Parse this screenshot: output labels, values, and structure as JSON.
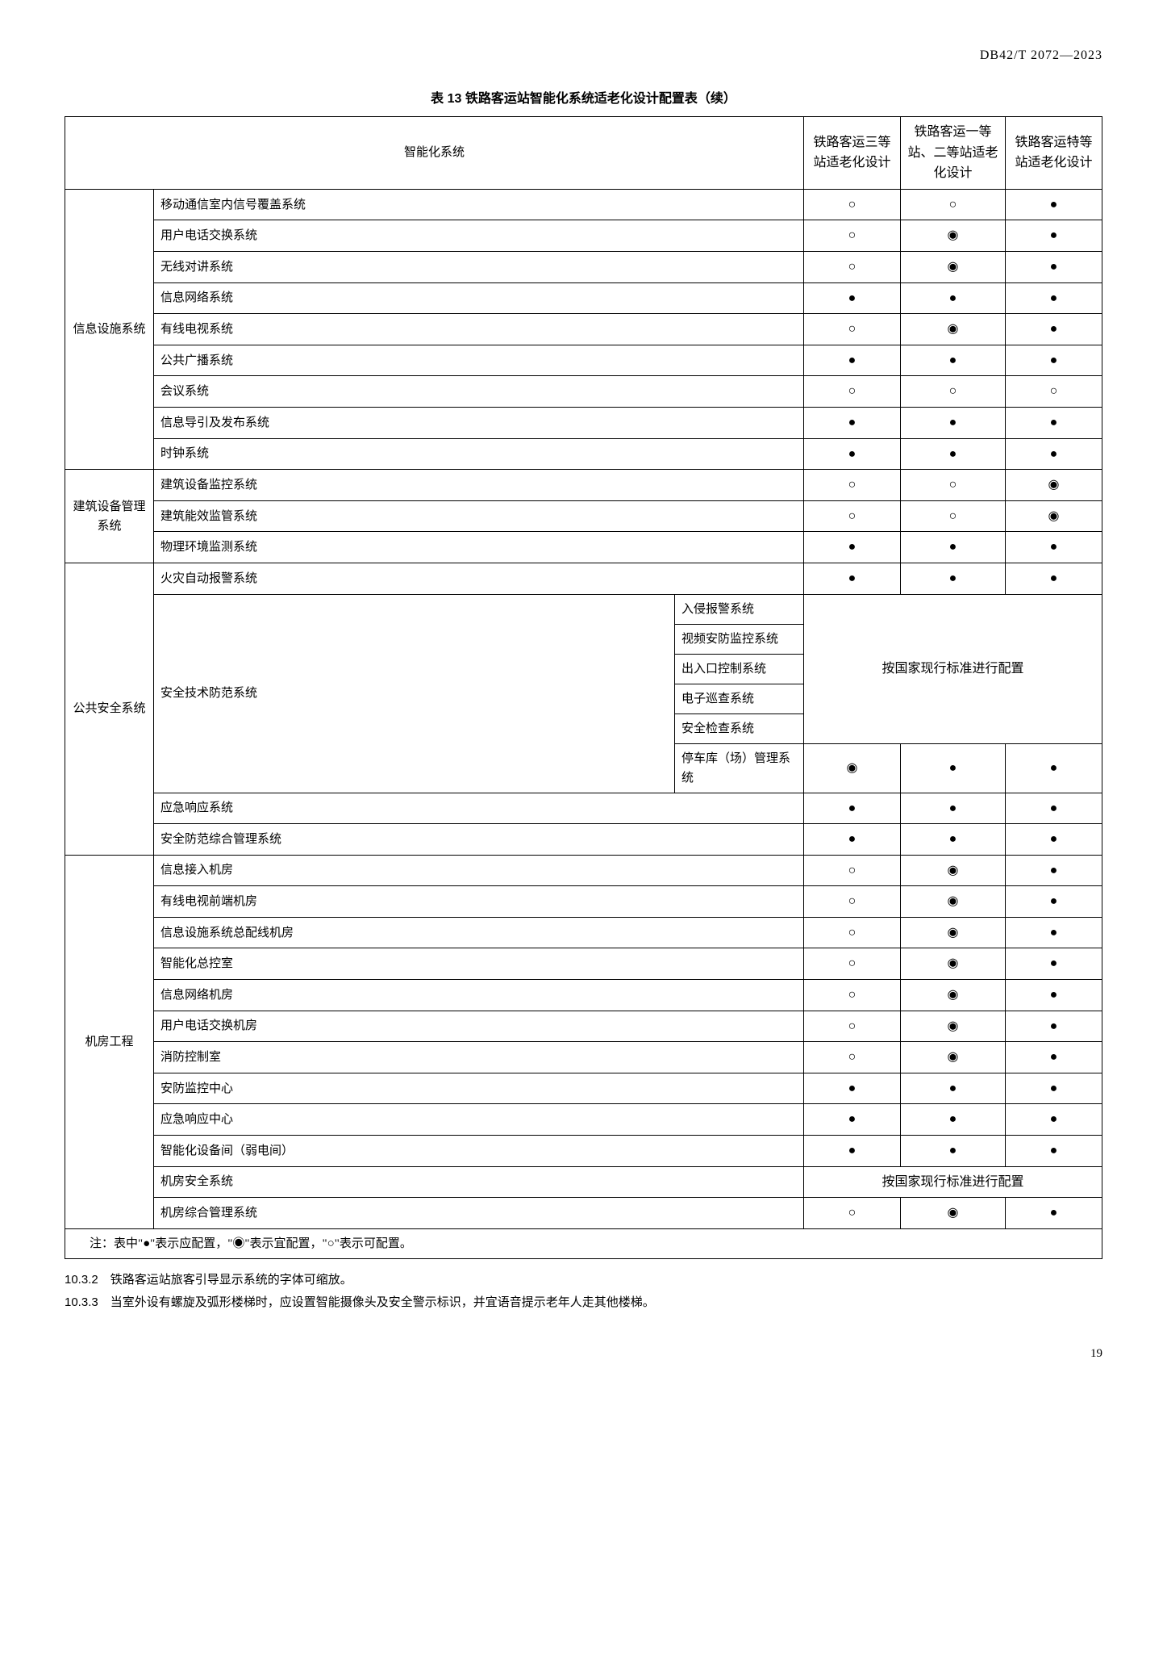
{
  "doc_header": "DB42/T 2072—2023",
  "table_title": "表 13  铁路客运站智能化系统适老化设计配置表（续）",
  "header": {
    "h1": "智能化系统",
    "h2": "铁路客运三等站适老化设计",
    "h3": "铁路客运一等站、二等站适老化设计",
    "h4": "铁路客运特等站适老化设计"
  },
  "symbols": {
    "solid": "●",
    "circle_dot": "◉",
    "hollow": "○"
  },
  "merge_text": "按国家现行标准进行配置",
  "groups": [
    {
      "cat": "信息设施系统",
      "rows": [
        {
          "sys": "移动通信室内信号覆盖系统",
          "m": [
            "hollow",
            "hollow",
            "solid"
          ]
        },
        {
          "sys": "用户电话交换系统",
          "m": [
            "hollow",
            "circle_dot",
            "solid"
          ]
        },
        {
          "sys": "无线对讲系统",
          "m": [
            "hollow",
            "circle_dot",
            "solid"
          ]
        },
        {
          "sys": "信息网络系统",
          "m": [
            "solid",
            "solid",
            "solid"
          ]
        },
        {
          "sys": "有线电视系统",
          "m": [
            "hollow",
            "circle_dot",
            "solid"
          ]
        },
        {
          "sys": "公共广播系统",
          "m": [
            "solid",
            "solid",
            "solid"
          ]
        },
        {
          "sys": "会议系统",
          "m": [
            "hollow",
            "hollow",
            "hollow"
          ]
        },
        {
          "sys": "信息导引及发布系统",
          "m": [
            "solid",
            "solid",
            "solid"
          ]
        },
        {
          "sys": "时钟系统",
          "m": [
            "solid",
            "solid",
            "solid"
          ]
        }
      ]
    },
    {
      "cat": "建筑设备管理系统",
      "rows": [
        {
          "sys": "建筑设备监控系统",
          "m": [
            "hollow",
            "hollow",
            "circle_dot"
          ]
        },
        {
          "sys": "建筑能效监管系统",
          "m": [
            "hollow",
            "hollow",
            "circle_dot"
          ]
        },
        {
          "sys": "物理环境监测系统",
          "m": [
            "solid",
            "solid",
            "solid"
          ]
        }
      ]
    },
    {
      "cat": "公共安全系统",
      "rows": [
        {
          "sys": "火灾自动报警系统",
          "m": [
            "solid",
            "solid",
            "solid"
          ]
        },
        {
          "sys_span": "安全技术防范系统",
          "subs": [
            {
              "sub": "入侵报警系统",
              "merge": true,
              "merge_rows": 5
            },
            {
              "sub": "视频安防监控系统"
            },
            {
              "sub": "出入口控制系统"
            },
            {
              "sub": "电子巡查系统"
            },
            {
              "sub": "安全检查系统"
            },
            {
              "sub": "停车库（场）管理系统",
              "m": [
                "circle_dot",
                "solid",
                "solid"
              ]
            }
          ]
        },
        {
          "sys": "应急响应系统",
          "m": [
            "solid",
            "solid",
            "solid"
          ]
        },
        {
          "sys": "安全防范综合管理系统",
          "m": [
            "solid",
            "solid",
            "solid"
          ]
        }
      ]
    },
    {
      "cat": "机房工程",
      "rows": [
        {
          "sys": "信息接入机房",
          "m": [
            "hollow",
            "circle_dot",
            "solid"
          ]
        },
        {
          "sys": "有线电视前端机房",
          "m": [
            "hollow",
            "circle_dot",
            "solid"
          ]
        },
        {
          "sys": "信息设施系统总配线机房",
          "m": [
            "hollow",
            "circle_dot",
            "solid"
          ]
        },
        {
          "sys": "智能化总控室",
          "m": [
            "hollow",
            "circle_dot",
            "solid"
          ]
        },
        {
          "sys": "信息网络机房",
          "m": [
            "hollow",
            "circle_dot",
            "solid"
          ]
        },
        {
          "sys": "用户电话交换机房",
          "m": [
            "hollow",
            "circle_dot",
            "solid"
          ]
        },
        {
          "sys": "消防控制室",
          "m": [
            "hollow",
            "circle_dot",
            "solid"
          ]
        },
        {
          "sys": "安防监控中心",
          "m": [
            "solid",
            "solid",
            "solid"
          ]
        },
        {
          "sys": "应急响应中心",
          "m": [
            "solid",
            "solid",
            "solid"
          ]
        },
        {
          "sys": "智能化设备间（弱电间）",
          "m": [
            "solid",
            "solid",
            "solid"
          ]
        },
        {
          "sys": "机房安全系统",
          "merge": true
        },
        {
          "sys": "机房综合管理系统",
          "m": [
            "hollow",
            "circle_dot",
            "solid"
          ]
        }
      ]
    }
  ],
  "note": "注：表中\"●\"表示应配置，\"◉\"表示宜配置，\"○\"表示可配置。",
  "clauses": [
    {
      "num": "10.3.2",
      "text": "铁路客运站旅客引导显示系统的字体可缩放。"
    },
    {
      "num": "10.3.3",
      "text": "当室外设有螺旋及弧形楼梯时，应设置智能摄像头及安全警示标识，并宜语音提示老年人走其他楼梯。"
    }
  ],
  "page_num": "19"
}
